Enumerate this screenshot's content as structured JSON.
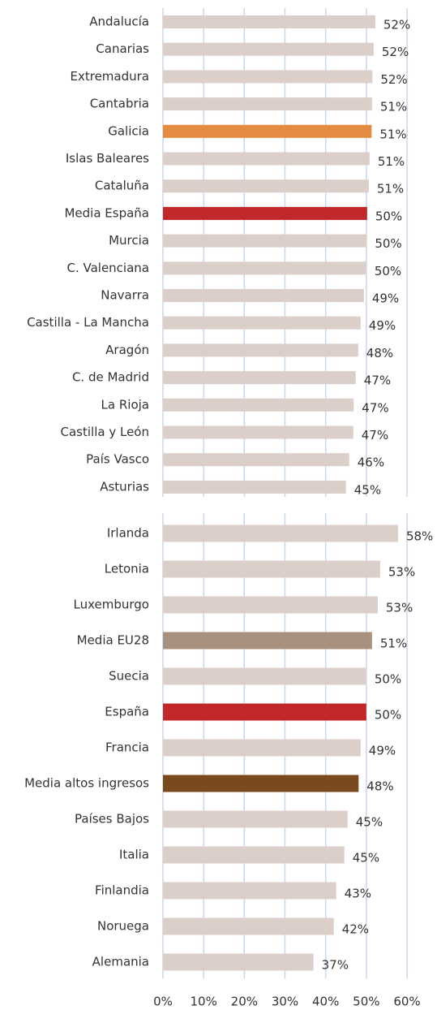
{
  "chart_data": [
    {
      "type": "bar",
      "orientation": "horizontal",
      "categories": [
        "Andalucía",
        "Canarias",
        "Extremadura",
        "Cantabria",
        "Galicia",
        "Islas Baleares",
        "Cataluña",
        "Media España",
        "Murcia",
        "C. Valenciana",
        "Navarra",
        "Castilla - La Mancha",
        "Aragón",
        "C. de Madrid",
        "La Rioja",
        "Castilla y León",
        "País Vasco",
        "Asturias"
      ],
      "values": [
        52.2,
        51.8,
        51.5,
        51.4,
        51.3,
        50.8,
        50.6,
        50.2,
        50.1,
        50.0,
        49.4,
        48.6,
        48.0,
        47.4,
        46.9,
        46.8,
        45.8,
        45.0
      ],
      "value_labels": [
        "52%",
        "52%",
        "52%",
        "51%",
        "51%",
        "51%",
        "51%",
        "50%",
        "50%",
        "50%",
        "49%",
        "49%",
        "48%",
        "47%",
        "47%",
        "47%",
        "46%",
        "45%"
      ],
      "colors": [
        "#dccfca",
        "#dccfca",
        "#dccfca",
        "#dccfca",
        "#e38b41",
        "#dccfca",
        "#dccfca",
        "#c0282a",
        "#dccfca",
        "#dccfca",
        "#dccfca",
        "#dccfca",
        "#dccfca",
        "#dccfca",
        "#dccfca",
        "#dccfca",
        "#dccfca",
        "#dccfca"
      ],
      "xlim": [
        0,
        60
      ],
      "xticks": [
        {
          "value": 0,
          "label": "0%"
        },
        {
          "value": 10,
          "label": "10%"
        },
        {
          "value": 20,
          "label": "20%"
        },
        {
          "value": 30,
          "label": "30%"
        },
        {
          "value": 40,
          "label": "40%"
        },
        {
          "value": 50,
          "label": "50%"
        },
        {
          "value": 60,
          "label": "60%"
        }
      ],
      "grid": true
    },
    {
      "type": "bar",
      "orientation": "horizontal",
      "categories": [
        "Irlanda",
        "Letonia",
        "Luxemburgo",
        "Media EU28",
        "Suecia",
        "España",
        "Francia",
        "Media altos ingresos",
        "Países Bajos",
        "Italia",
        "Finlandia",
        "Noruega",
        "Alemania"
      ],
      "values": [
        57.8,
        53.4,
        52.8,
        51.4,
        50.0,
        50.0,
        48.6,
        48.1,
        45.4,
        44.6,
        42.6,
        42.0,
        37.0
      ],
      "value_labels": [
        "58%",
        "53%",
        "53%",
        "51%",
        "50%",
        "50%",
        "49%",
        "48%",
        "45%",
        "45%",
        "43%",
        "42%",
        "37%"
      ],
      "colors": [
        "#dccfca",
        "#dccfca",
        "#dccfca",
        "#a8917f",
        "#dccfca",
        "#c0282a",
        "#dccfca",
        "#7a4a1f",
        "#dccfca",
        "#dccfca",
        "#dccfca",
        "#dccfca",
        "#dccfca"
      ],
      "xlim": [
        0,
        60
      ],
      "xticks": [
        {
          "value": 0,
          "label": "0%"
        },
        {
          "value": 10,
          "label": "10%"
        },
        {
          "value": 20,
          "label": "20%"
        },
        {
          "value": 30,
          "label": "30%"
        },
        {
          "value": 40,
          "label": "40%"
        },
        {
          "value": 50,
          "label": "50%"
        },
        {
          "value": 60,
          "label": "60%"
        }
      ],
      "grid": true
    }
  ]
}
